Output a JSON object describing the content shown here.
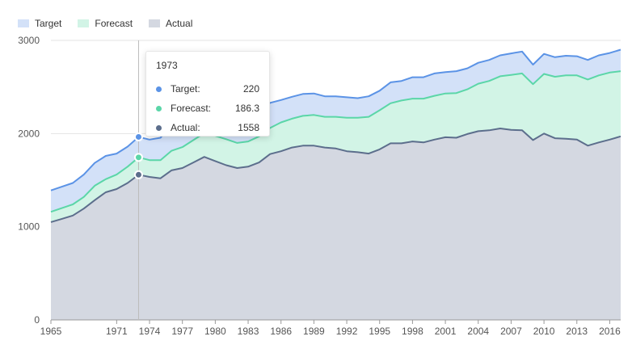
{
  "legend": [
    {
      "name": "Target",
      "color": "#d3e1f8"
    },
    {
      "name": "Forecast",
      "color": "#d2f4e6"
    },
    {
      "name": "Actual",
      "color": "#d4d8e1"
    }
  ],
  "colors": {
    "target_line": "#5b93e6",
    "forecast_line": "#5bd6a8",
    "actual_line": "#5c6e8c",
    "target_fill": "#d3e1f8",
    "forecast_fill": "#d2f4e6",
    "actual_fill": "#d4d8e1"
  },
  "tooltip": {
    "title": "1973",
    "rows": [
      {
        "name": "Target:",
        "value": "220",
        "color": "#5b93e6"
      },
      {
        "name": "Forecast:",
        "value": "186.3",
        "color": "#5bd6a8"
      },
      {
        "name": "Actual:",
        "value": "1558",
        "color": "#5c6e8c"
      }
    ]
  },
  "chart_data": {
    "type": "area",
    "stacked": true,
    "x": [
      1965,
      1966,
      1967,
      1968,
      1969,
      1970,
      1971,
      1972,
      1973,
      1974,
      1975,
      1976,
      1977,
      1978,
      1979,
      1980,
      1981,
      1982,
      1983,
      1984,
      1985,
      1986,
      1987,
      1988,
      1989,
      1990,
      1991,
      1992,
      1993,
      1994,
      1995,
      1996,
      1997,
      1998,
      1999,
      2000,
      2001,
      2002,
      2003,
      2004,
      2005,
      2006,
      2007,
      2008,
      2009,
      2010,
      2011,
      2012,
      2013,
      2014,
      2015,
      2016,
      2017
    ],
    "xticks": [
      "1965",
      "1971",
      "1974",
      "1977",
      "1980",
      "1983",
      "1986",
      "1989",
      "1992",
      "1995",
      "1998",
      "2001",
      "2004",
      "2007",
      "2010",
      "2013",
      "2016"
    ],
    "xtick_years": [
      1965,
      1971,
      1974,
      1977,
      1980,
      1983,
      1986,
      1989,
      1992,
      1995,
      1998,
      2001,
      2004,
      2007,
      2010,
      2013,
      2016
    ],
    "yticks": [
      0,
      1000,
      2000,
      3000
    ],
    "ylim": [
      0,
      3000
    ],
    "grid": true,
    "legend_position": "top-left",
    "highlight_year": 1973,
    "series": [
      {
        "name": "Actual",
        "values": [
          1050,
          1085,
          1120,
          1195,
          1285,
          1370,
          1405,
          1470,
          1558,
          1535,
          1520,
          1605,
          1630,
          1690,
          1750,
          1705,
          1660,
          1630,
          1645,
          1690,
          1780,
          1810,
          1850,
          1870,
          1870,
          1850,
          1840,
          1810,
          1800,
          1785,
          1830,
          1895,
          1895,
          1915,
          1905,
          1935,
          1960,
          1955,
          1995,
          2025,
          2035,
          2055,
          2040,
          2035,
          1930,
          2000,
          1950,
          1945,
          1935,
          1870,
          1905,
          1935,
          1970
        ]
      },
      {
        "name": "Forecast",
        "values": [
          110,
          115,
          120,
          125,
          155,
          140,
          155,
          175,
          186.3,
          180,
          195,
          210,
          225,
          240,
          255,
          270,
          280,
          270,
          270,
          280,
          280,
          310,
          310,
          320,
          330,
          330,
          340,
          360,
          370,
          395,
          420,
          430,
          460,
          460,
          470,
          470,
          470,
          480,
          480,
          510,
          530,
          560,
          590,
          610,
          600,
          640,
          660,
          680,
          690,
          710,
          720,
          720,
          700
        ]
      },
      {
        "name": "Target",
        "values": [
          230,
          230,
          230,
          240,
          245,
          250,
          225,
          215,
          220,
          220,
          240,
          290,
          265,
          290,
          270,
          270,
          275,
          240,
          270,
          260,
          270,
          240,
          235,
          235,
          230,
          220,
          220,
          220,
          210,
          220,
          210,
          225,
          210,
          230,
          230,
          240,
          230,
          235,
          225,
          225,
          225,
          225,
          230,
          235,
          210,
          215,
          210,
          210,
          205,
          210,
          215,
          210,
          230
        ]
      }
    ]
  }
}
